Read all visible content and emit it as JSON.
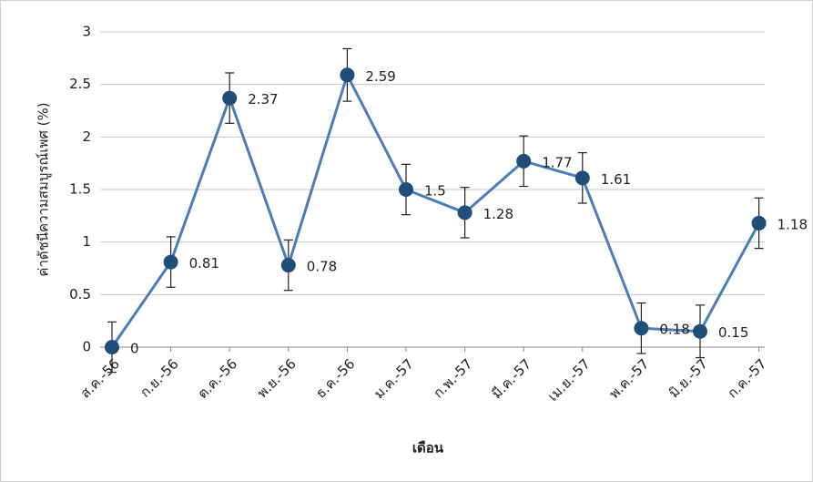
{
  "chart_data": {
    "type": "line",
    "x_label": "เดือน",
    "y_label": "ค่าดัชนีความสมบูรณ์เพศ (%)",
    "categories": [
      "ส.ค.-56",
      "ก.ย.-56",
      "ต.ค.-56",
      "พ.ย.-56",
      "ธ.ค.-56",
      "ม.ค.-57",
      "ก.พ.-57",
      "มี.ค.-57",
      "เม.ย.-57",
      "พ.ค.-57",
      "มิ.ย.-57",
      "ก.ค.-57"
    ],
    "series": [
      {
        "color": "#4a7ebb",
        "marker_color": "#1f4e79",
        "values": [
          0,
          0.81,
          2.37,
          0.78,
          2.59,
          1.5,
          1.28,
          1.77,
          1.61,
          0.18,
          0.15,
          1.18
        ],
        "error": [
          0.24,
          0.24,
          0.24,
          0.24,
          0.25,
          0.24,
          0.24,
          0.24,
          0.24,
          0.24,
          0.25,
          0.24
        ]
      }
    ],
    "ylim": [
      0,
      3
    ],
    "yticks": [
      0,
      0.5,
      1,
      1.5,
      2,
      2.5,
      3
    ],
    "grid": true
  }
}
